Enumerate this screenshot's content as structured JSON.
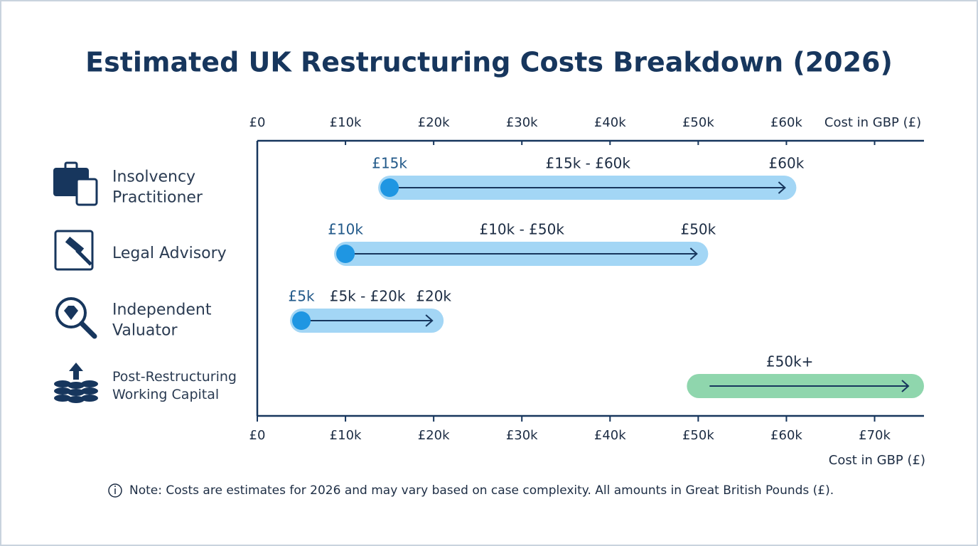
{
  "chart_data": {
    "type": "range-bar",
    "title": "Estimated UK Restructuring Costs Breakdown (2026)",
    "x_label": "Cost in GBP (£)",
    "categories": [
      [
        "Insolvency",
        "Practitioner"
      ],
      [
        "Legal Advisory"
      ],
      [
        "Independent",
        "Valuator"
      ],
      [
        "Post-Restructuring",
        "Working Capital"
      ]
    ],
    "low": [
      15000,
      10000,
      5000,
      50000
    ],
    "high": [
      60000,
      50000,
      20000,
      null
    ],
    "low_labels": [
      "£15k",
      "£10k",
      "£5k",
      null
    ],
    "high_labels": [
      "£60k",
      "£50k",
      "£20k",
      null
    ],
    "range_labels": [
      "£15k - £60k",
      "£10k - £50k",
      "£5k - £20k",
      "£50k+"
    ],
    "colors": [
      "#a3d6f5",
      "#a3d6f5",
      "#a3d6f5",
      "#8fd6ad"
    ],
    "dot_color": "#1f96e2",
    "xlim": [
      0,
      75600
    ],
    "top_xticks": [
      {
        "value": 0,
        "label": "£0"
      },
      {
        "value": 10000,
        "label": "£10k"
      },
      {
        "value": 20000,
        "label": "£20k"
      },
      {
        "value": 30000,
        "label": "£30k"
      },
      {
        "value": 40000,
        "label": "£40k"
      },
      {
        "value": 50000,
        "label": "£50k"
      },
      {
        "value": 60000,
        "label": "£60k"
      }
    ],
    "xticks": [
      {
        "value": 0,
        "label": "£0"
      },
      {
        "value": 10000,
        "label": "£10k"
      },
      {
        "value": 20000,
        "label": "£20k"
      },
      {
        "value": 30000,
        "label": "£30k"
      },
      {
        "value": 40000,
        "label": "£40k"
      },
      {
        "value": 50000,
        "label": "£50k"
      },
      {
        "value": 60000,
        "label": "£60k"
      },
      {
        "value": 70000,
        "label": "£70k"
      }
    ],
    "note": "Note: Costs are estimates for 2026 and may vary based on case complexity. All amounts in Great British Pounds (£)."
  }
}
